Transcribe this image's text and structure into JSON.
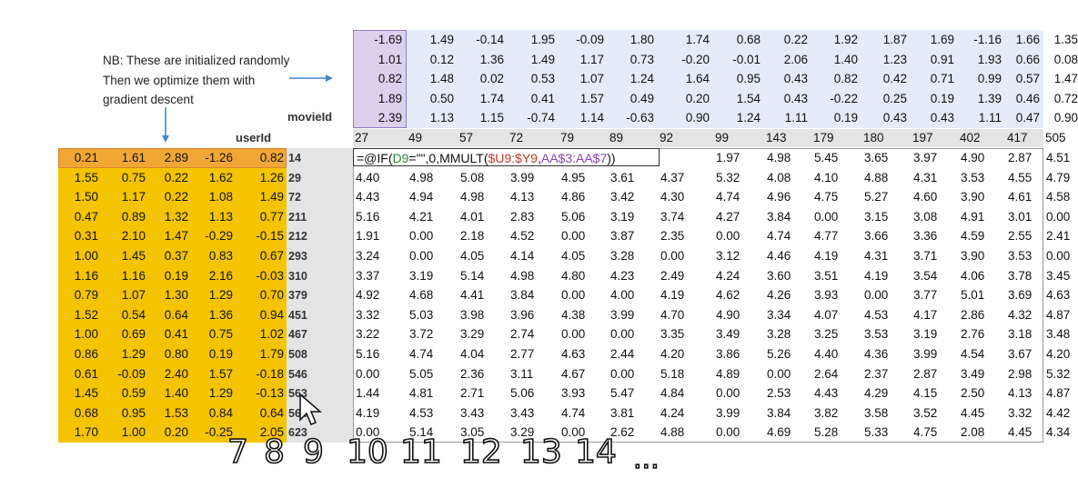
{
  "note": {
    "line1": "NB: These are initialized randomly",
    "line2": "Then we optimize them with",
    "line3": "gradient descent"
  },
  "labels": {
    "movieid": "movieId",
    "userid": "userId"
  },
  "movie_factors": [
    [
      -1.69,
      1.49,
      -0.14,
      1.95,
      -0.09,
      1.8,
      1.74,
      0.68,
      0.22,
      1.92,
      1.87,
      1.69,
      -1.16,
      1.66,
      1.35
    ],
    [
      1.01,
      0.12,
      1.36,
      1.49,
      1.17,
      0.73,
      -0.2,
      -0.01,
      2.06,
      1.4,
      1.23,
      0.91,
      1.93,
      0.66,
      0.08
    ],
    [
      0.82,
      1.48,
      0.02,
      0.53,
      1.07,
      1.24,
      1.64,
      0.95,
      0.43,
      0.82,
      0.42,
      0.71,
      0.99,
      0.57,
      1.47
    ],
    [
      1.89,
      0.5,
      1.74,
      0.41,
      1.57,
      0.49,
      0.2,
      1.54,
      0.43,
      -0.22,
      0.25,
      0.19,
      1.39,
      0.46,
      0.72
    ],
    [
      2.39,
      1.13,
      1.15,
      -0.74,
      1.14,
      -0.63,
      0.9,
      1.24,
      1.11,
      0.19,
      0.43,
      0.43,
      1.11,
      0.47,
      0.9
    ]
  ],
  "movie_ids": [
    "27",
    "49",
    "57",
    "72",
    "79",
    "89",
    "92",
    "99",
    "143",
    "179",
    "180",
    "197",
    "402",
    "417",
    "505"
  ],
  "user_ids": [
    "14",
    "29",
    "72",
    "211",
    "212",
    "293",
    "310",
    "379",
    "451",
    "467",
    "508",
    "546",
    "563",
    "564",
    "623"
  ],
  "user_factors": [
    [
      0.21,
      1.61,
      2.89,
      -1.26,
      0.82
    ],
    [
      1.55,
      0.75,
      0.22,
      1.62,
      1.26
    ],
    [
      1.5,
      1.17,
      0.22,
      1.08,
      1.49
    ],
    [
      0.47,
      0.89,
      1.32,
      1.13,
      0.77
    ],
    [
      0.31,
      2.1,
      1.47,
      -0.29,
      -0.15
    ],
    [
      1.0,
      1.45,
      0.37,
      0.83,
      0.67
    ],
    [
      1.16,
      1.16,
      0.19,
      2.16,
      -0.03
    ],
    [
      0.79,
      1.07,
      1.3,
      1.29,
      0.7
    ],
    [
      1.52,
      0.54,
      0.64,
      1.36,
      0.94
    ],
    [
      1.0,
      0.69,
      0.41,
      0.75,
      1.02
    ],
    [
      0.86,
      1.29,
      0.8,
      0.19,
      1.79
    ],
    [
      0.61,
      -0.09,
      2.4,
      1.57,
      -0.18
    ],
    [
      1.45,
      0.59,
      1.4,
      1.29,
      -0.13
    ],
    [
      0.68,
      0.95,
      1.53,
      0.84,
      0.64
    ],
    [
      1.7,
      1.0,
      0.2,
      -0.25,
      2.05
    ]
  ],
  "predictions": [
    [
      null,
      null,
      null,
      null,
      null,
      null,
      null,
      1.97,
      4.98,
      5.45,
      3.65,
      3.97,
      4.9,
      2.87,
      4.51
    ],
    [
      4.4,
      4.98,
      5.08,
      3.99,
      4.95,
      3.61,
      4.37,
      5.32,
      4.08,
      4.1,
      4.88,
      4.31,
      3.53,
      4.55,
      4.79
    ],
    [
      4.43,
      4.94,
      4.98,
      4.13,
      4.86,
      3.42,
      4.3,
      4.74,
      4.96,
      4.75,
      5.27,
      4.6,
      3.9,
      4.61,
      4.58
    ],
    [
      5.16,
      4.21,
      4.01,
      2.83,
      5.06,
      3.19,
      3.74,
      4.27,
      3.84,
      0.0,
      3.15,
      3.08,
      4.91,
      3.01,
      0.0
    ],
    [
      1.91,
      0.0,
      2.18,
      4.52,
      0.0,
      3.87,
      2.35,
      0.0,
      4.74,
      4.77,
      3.66,
      3.36,
      4.59,
      2.55,
      2.41
    ],
    [
      3.24,
      0.0,
      4.05,
      4.14,
      4.05,
      3.28,
      0.0,
      3.12,
      4.46,
      4.19,
      4.31,
      3.71,
      3.9,
      3.53,
      0.0
    ],
    [
      3.37,
      3.19,
      5.14,
      4.98,
      4.8,
      4.23,
      2.49,
      4.24,
      3.6,
      3.51,
      4.19,
      3.54,
      4.06,
      3.78,
      3.45
    ],
    [
      4.92,
      4.68,
      4.41,
      3.84,
      0.0,
      4.0,
      4.19,
      4.62,
      4.26,
      3.93,
      0.0,
      3.77,
      5.01,
      3.69,
      4.63
    ],
    [
      3.32,
      5.03,
      3.98,
      3.96,
      4.38,
      3.99,
      4.7,
      4.9,
      3.34,
      4.07,
      4.53,
      4.17,
      2.86,
      4.32,
      4.87
    ],
    [
      3.22,
      3.72,
      3.29,
      2.74,
      0.0,
      0.0,
      3.35,
      3.49,
      3.28,
      3.25,
      3.53,
      3.19,
      2.76,
      3.18,
      3.48
    ],
    [
      5.16,
      4.74,
      4.04,
      2.77,
      4.63,
      2.44,
      4.2,
      3.86,
      5.26,
      4.4,
      4.36,
      3.99,
      4.54,
      3.67,
      4.2
    ],
    [
      0.0,
      5.05,
      2.36,
      3.11,
      4.67,
      0.0,
      5.18,
      4.89,
      0.0,
      2.64,
      2.37,
      2.87,
      3.49,
      2.98,
      5.32
    ],
    [
      1.44,
      4.81,
      2.71,
      5.06,
      3.93,
      5.47,
      4.84,
      0.0,
      2.53,
      4.43,
      4.29,
      4.15,
      2.5,
      4.13,
      4.87
    ],
    [
      4.19,
      4.53,
      3.43,
      3.43,
      4.74,
      3.81,
      4.24,
      3.99,
      3.84,
      3.82,
      3.58,
      3.52,
      4.45,
      3.32,
      4.42
    ],
    [
      0.0,
      5.14,
      3.05,
      3.29,
      0.0,
      2.62,
      4.88,
      0.0,
      4.69,
      5.28,
      5.33,
      4.75,
      2.08,
      4.45,
      4.34
    ]
  ],
  "formula": {
    "p1": "=@IF(",
    "p2": "D9",
    "p3": "=\"\",0,MMULT(",
    "p4": "$U9:$Y9",
    "p5": ",",
    "p6": "AA$3:AA$7",
    "p7": "))"
  },
  "overlay_numbers": [
    "7",
    "8",
    "9",
    "10",
    "11",
    "12",
    "13",
    "14",
    "..."
  ],
  "colors": {
    "movie_bg": "#e3ecf8",
    "movie_first_col": "#ddd0ee",
    "user_bg": "#f5c400",
    "user_selected_row": "#f2a735",
    "header_gray": "#e4e4e4",
    "arrow": "#4a86c8"
  }
}
